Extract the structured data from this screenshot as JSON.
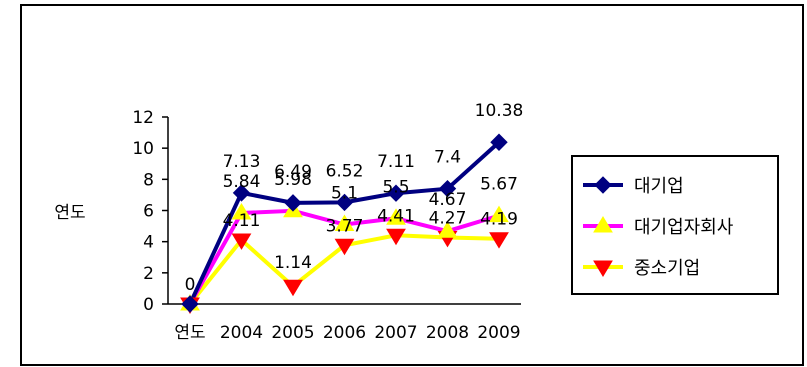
{
  "chart_data": {
    "type": "line",
    "categories": [
      "연도",
      "2004",
      "2005",
      "2006",
      "2007",
      "2008",
      "2009"
    ],
    "ylabel": "연도",
    "ylim": [
      0,
      12
    ],
    "yticks": [
      0,
      2,
      4,
      6,
      8,
      10,
      12
    ],
    "grid": false,
    "legend_position": "right",
    "series": [
      {
        "name": "대기업",
        "values": [
          0,
          7.13,
          6.49,
          6.52,
          7.11,
          7.4,
          10.38
        ],
        "labels": [
          "0",
          "7.13",
          "6.49",
          "6.52",
          "7.11",
          "7.4",
          "10.38"
        ],
        "color": "#000080",
        "marker": "diamond",
        "marker_color": "#000080"
      },
      {
        "name": "대기업자회사",
        "values": [
          0,
          5.84,
          5.98,
          5.1,
          5.5,
          4.67,
          5.67
        ],
        "labels": [
          "0",
          "5.84",
          "5.98",
          "5.1",
          "5.5",
          "4.67",
          "5.67"
        ],
        "color": "#ff00ff",
        "marker": "triangle-up",
        "marker_color": "#ffff00"
      },
      {
        "name": "중소기업",
        "values": [
          0,
          4.11,
          1.14,
          3.77,
          4.41,
          4.27,
          4.19
        ],
        "labels": [
          "0",
          "4.11",
          "1.14",
          "3.77",
          "4.41",
          "4.27",
          "4.19"
        ],
        "color": "#ffff00",
        "marker": "triangle-down",
        "marker_color": "#ff0000"
      }
    ]
  }
}
